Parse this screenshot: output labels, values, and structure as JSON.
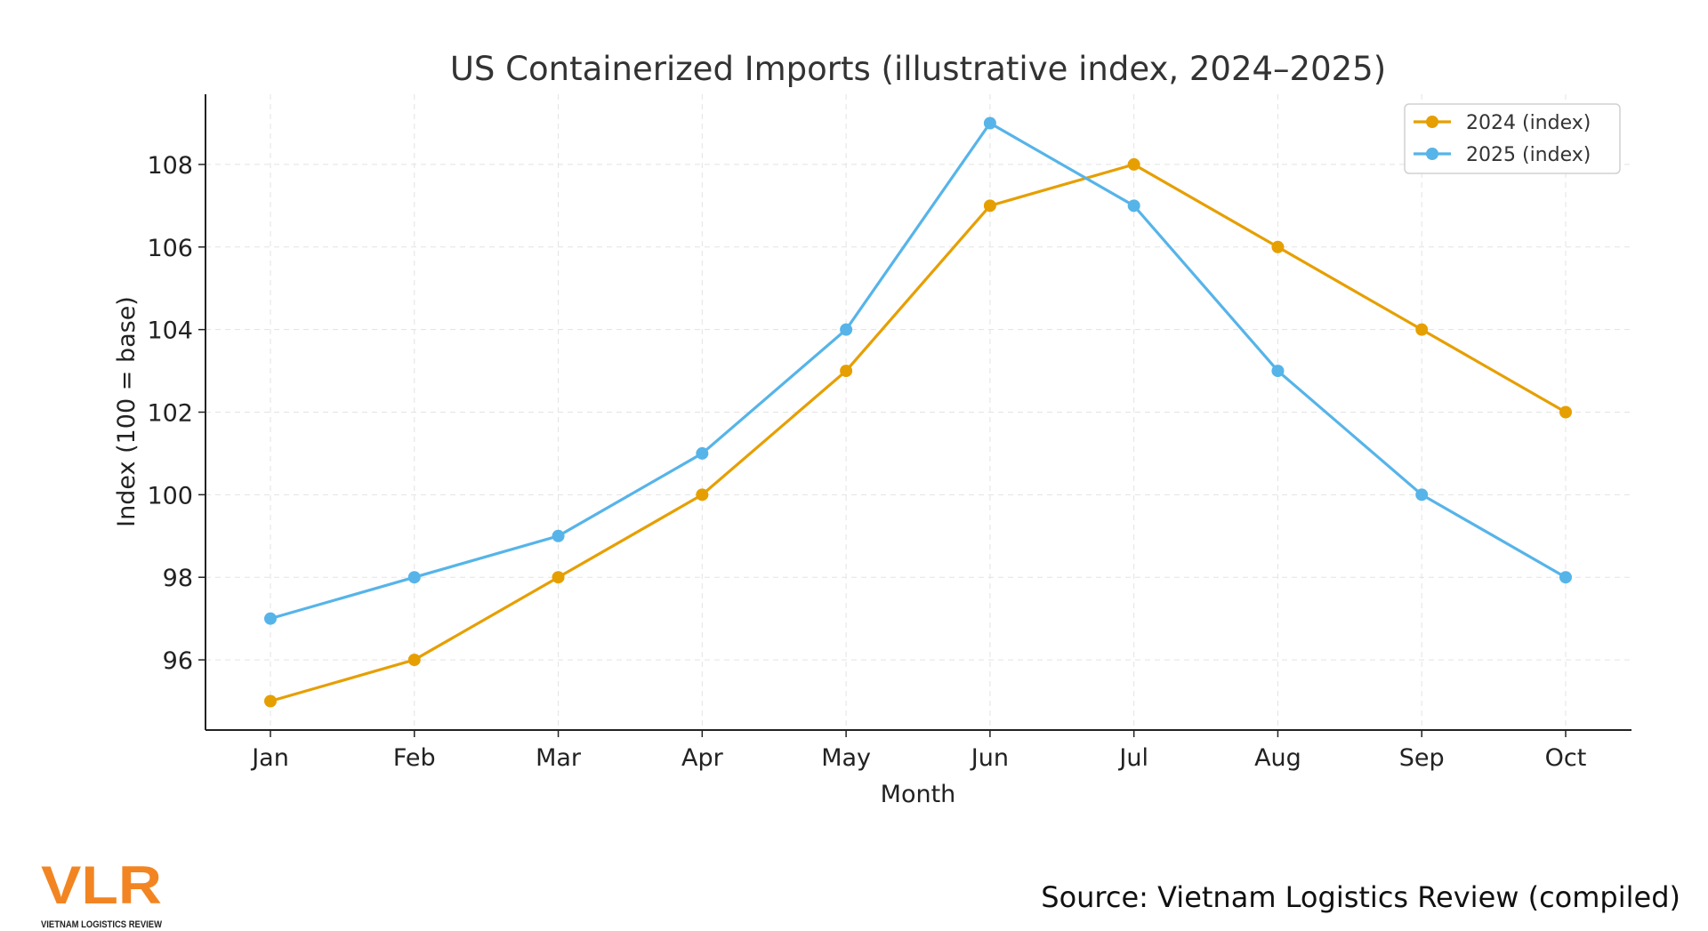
{
  "chart_data": {
    "type": "line",
    "title": "US Containerized Imports (illustrative index, 2024–2025)",
    "xlabel": "Month",
    "ylabel": "Index (100 = base)",
    "categories": [
      "Jan",
      "Feb",
      "Mar",
      "Apr",
      "May",
      "Jun",
      "Jul",
      "Aug",
      "Sep",
      "Oct"
    ],
    "ylim": [
      94.3,
      109.7
    ],
    "yticks": [
      96,
      98,
      100,
      102,
      104,
      106,
      108
    ],
    "grid": true,
    "legend_position": "top-right",
    "series": [
      {
        "name": "2024 (index)",
        "color": "#E69F00",
        "values": [
          95,
          96,
          98,
          100,
          103,
          107,
          108,
          106,
          104,
          102
        ]
      },
      {
        "name": "2025 (index)",
        "color": "#56B4E9",
        "values": [
          97,
          98,
          99,
          101,
          104,
          109,
          107,
          103,
          100,
          98
        ]
      }
    ]
  },
  "footer": {
    "source": "Source: Vietnam Logistics Review (compiled)",
    "logo": {
      "mark": "VLR",
      "tagline": "VIETNAM LOGISTICS REVIEW",
      "color": "#F28522"
    }
  }
}
